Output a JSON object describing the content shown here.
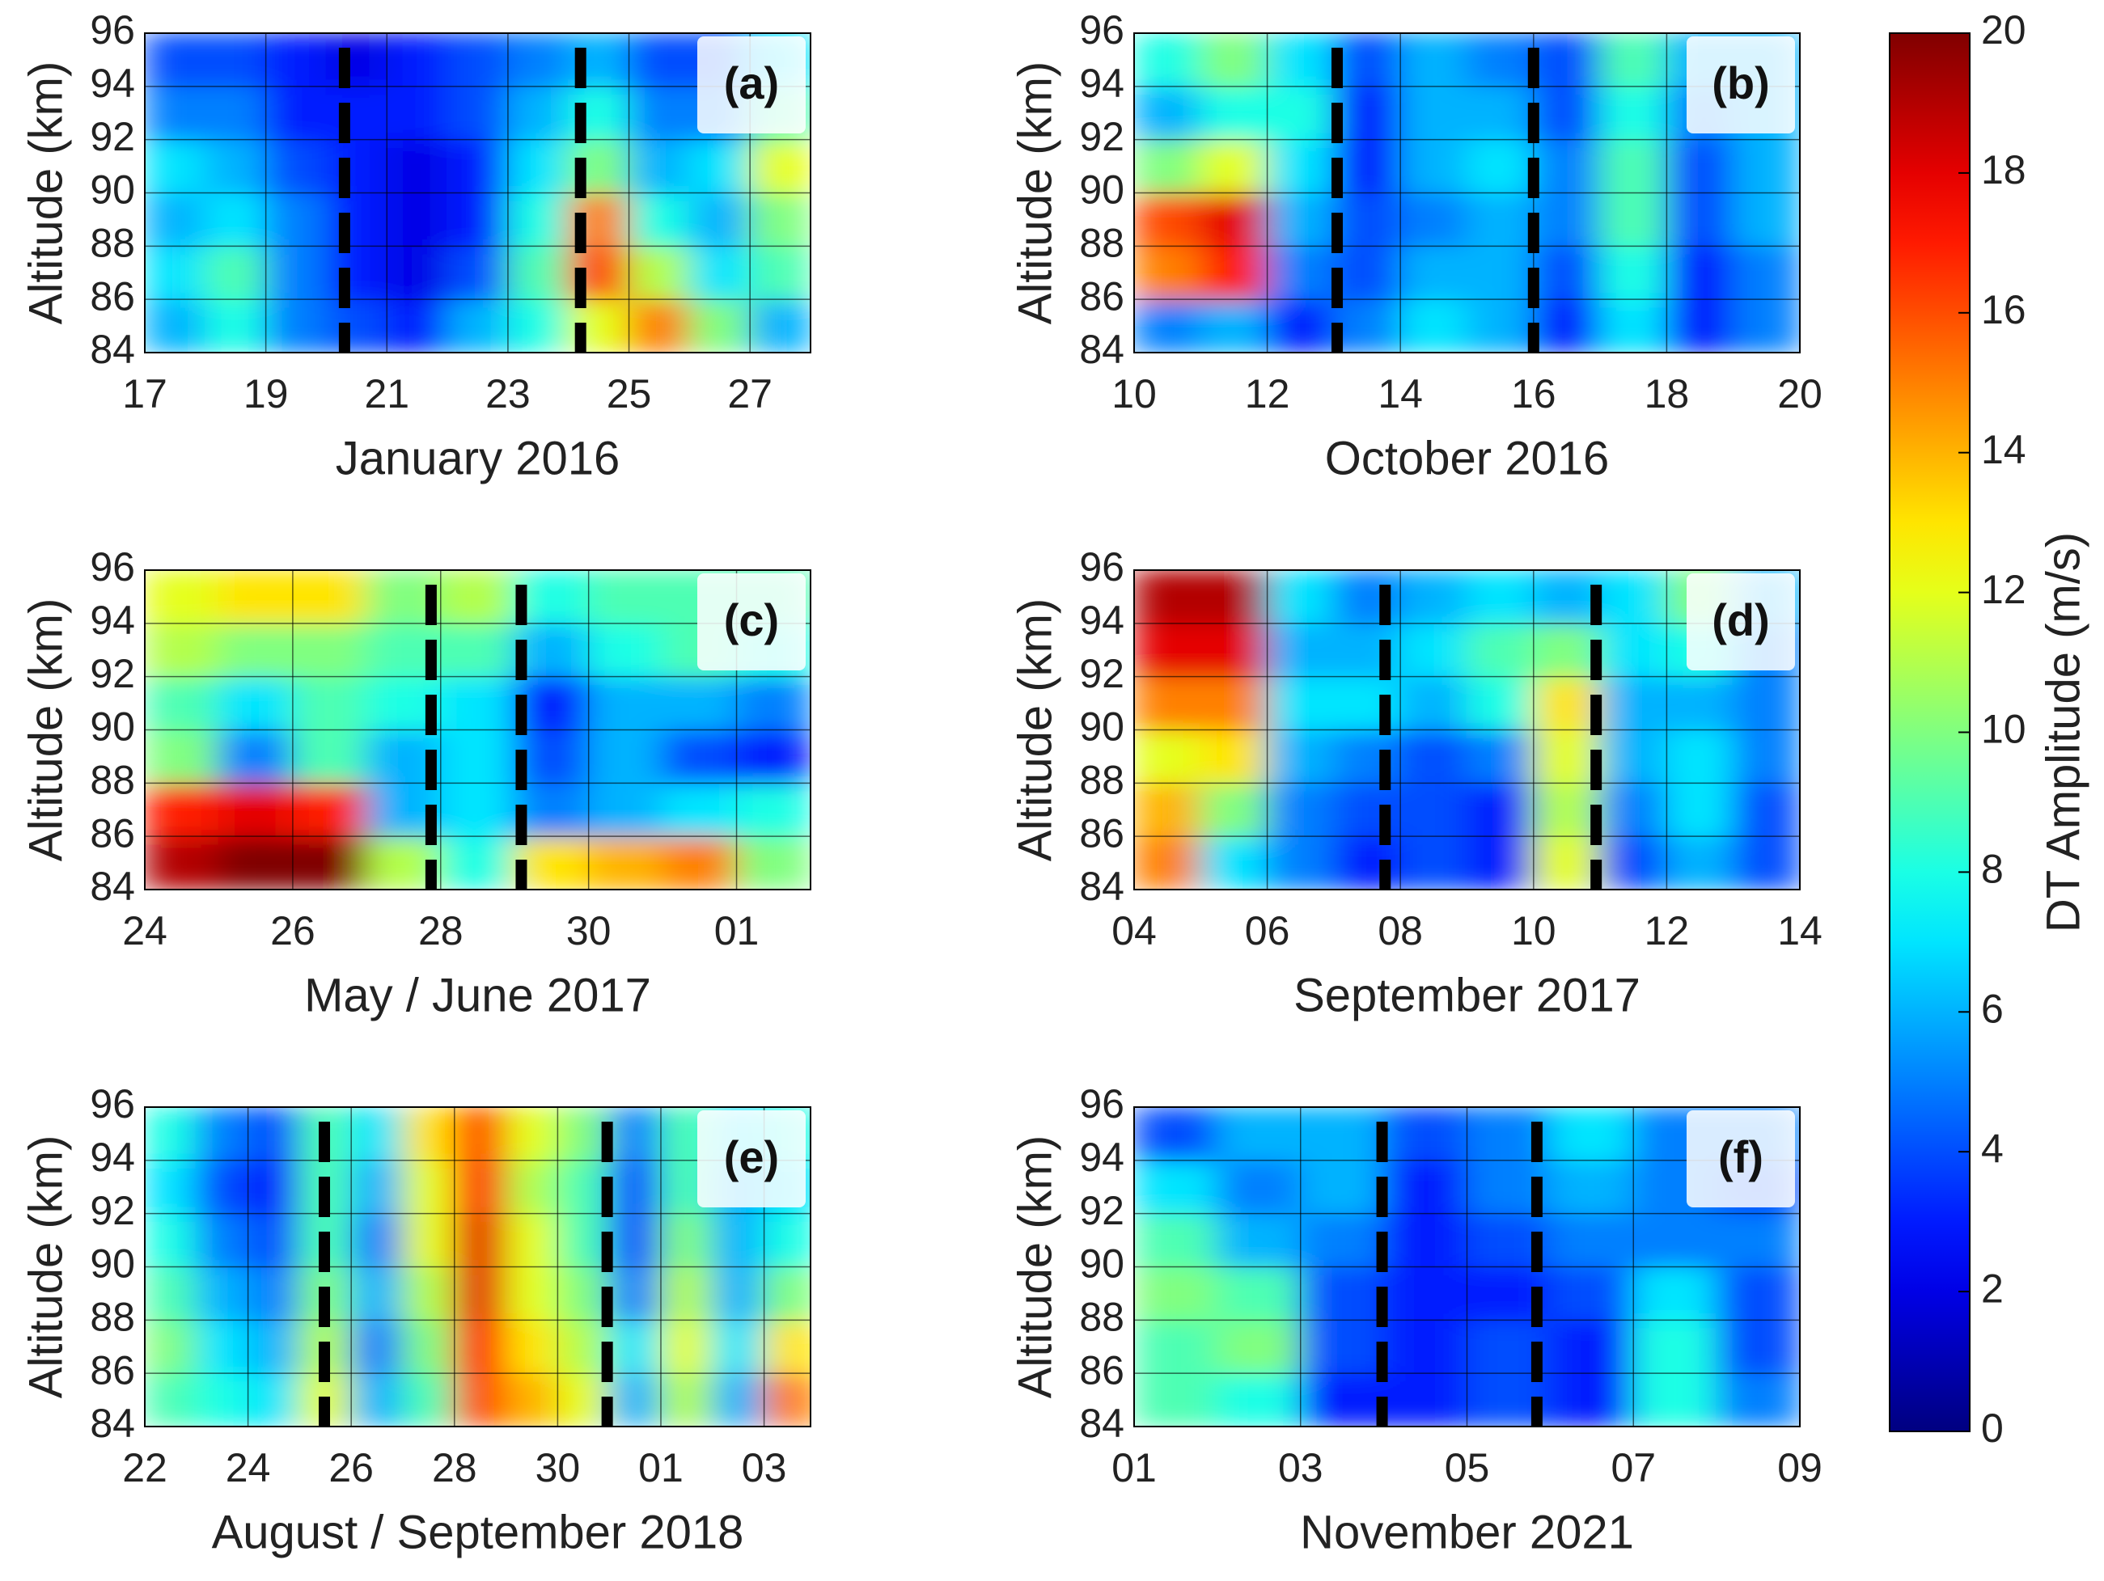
{
  "chart_data": [
    {
      "type": "heatmap",
      "label": "(a)",
      "xlabel": "January 2016",
      "ylabel": "Altitude (km)",
      "colormap": "jet",
      "zlim": [
        0,
        20
      ],
      "grid": true,
      "xlim": [
        17,
        28
      ],
      "xticks": [
        17,
        19,
        21,
        23,
        25,
        27
      ],
      "ylim": [
        84,
        96
      ],
      "yticks": [
        84,
        86,
        88,
        90,
        92,
        94,
        96
      ],
      "event_lines": [
        20.3,
        24.2
      ],
      "x": [
        17.5,
        18.5,
        19.5,
        20.5,
        21.5,
        22.5,
        23.5,
        24.5,
        25.5,
        26.5,
        27.5
      ],
      "y": [
        85,
        87,
        89,
        91,
        93,
        95
      ],
      "z": [
        [
          6,
          8,
          5,
          4,
          3,
          6,
          8,
          12,
          15,
          10,
          6
        ],
        [
          7,
          9,
          5,
          3,
          2,
          4,
          9,
          16,
          11,
          7,
          9
        ],
        [
          6,
          7,
          5,
          3,
          2,
          3,
          8,
          15,
          8,
          6,
          10
        ],
        [
          7,
          6,
          4,
          3,
          2,
          3,
          7,
          10,
          6,
          7,
          12
        ],
        [
          5,
          5,
          3,
          3,
          3,
          4,
          6,
          8,
          5,
          5,
          9
        ],
        [
          4,
          4,
          3,
          2,
          3,
          4,
          5,
          6,
          4,
          4,
          7
        ]
      ]
    },
    {
      "type": "heatmap",
      "label": "(b)",
      "xlabel": "October 2016",
      "ylabel": "Altitude (km)",
      "colormap": "jet",
      "zlim": [
        0,
        20
      ],
      "grid": true,
      "xlim": [
        10,
        20
      ],
      "xticks": [
        10,
        12,
        14,
        16,
        18,
        20
      ],
      "ylim": [
        84,
        96
      ],
      "yticks": [
        84,
        86,
        88,
        90,
        92,
        94,
        96
      ],
      "event_lines": [
        13.05,
        16
      ],
      "x": [
        10.5,
        11.5,
        12.5,
        13.5,
        14.5,
        15.5,
        16.5,
        17.5,
        18.5,
        19.5
      ],
      "y": [
        85,
        87,
        89,
        91,
        93,
        95
      ],
      "z": [
        [
          5,
          6,
          3,
          5,
          7,
          6,
          3,
          7,
          3,
          5
        ],
        [
          15,
          17,
          5,
          4,
          6,
          6,
          4,
          8,
          3,
          5
        ],
        [
          16,
          18,
          6,
          4,
          5,
          6,
          5,
          9,
          4,
          6
        ],
        [
          10,
          12,
          7,
          3,
          6,
          7,
          5,
          9,
          4,
          6
        ],
        [
          6,
          8,
          8,
          3,
          6,
          6,
          4,
          8,
          5,
          6
        ],
        [
          8,
          10,
          7,
          4,
          6,
          5,
          4,
          9,
          6,
          6
        ]
      ]
    },
    {
      "type": "heatmap",
      "label": "(c)",
      "xlabel": "May / June 2017",
      "ylabel": "Altitude (km)",
      "colormap": "jet",
      "zlim": [
        0,
        20
      ],
      "grid": true,
      "xlim": [
        0,
        9
      ],
      "xticks": [
        {
          "value": 0,
          "label": "24"
        },
        {
          "value": 2,
          "label": "26"
        },
        {
          "value": 4,
          "label": "28"
        },
        {
          "value": 6,
          "label": "30"
        },
        {
          "value": 8,
          "label": "01"
        }
      ],
      "ylim": [
        84,
        96
      ],
      "yticks": [
        84,
        86,
        88,
        90,
        92,
        94,
        96
      ],
      "event_lines": [
        3.87,
        5.09
      ],
      "x": [
        0.5,
        1.5,
        2.5,
        3.5,
        4.5,
        5.5,
        6.5,
        7.5,
        8.5
      ],
      "y": [
        85,
        87,
        89,
        91,
        93,
        95
      ],
      "z": [
        [
          19,
          20,
          20,
          11,
          8,
          13,
          14,
          15,
          10
        ],
        [
          17,
          18,
          17,
          6,
          7,
          5,
          6,
          7,
          8
        ],
        [
          10,
          5,
          9,
          6,
          7,
          4,
          6,
          4,
          3
        ],
        [
          9,
          7,
          9,
          8,
          7,
          3,
          6,
          6,
          5
        ],
        [
          11,
          10,
          10,
          9,
          9,
          6,
          8,
          9,
          8
        ],
        [
          12,
          13,
          13,
          10,
          11,
          8,
          9,
          9,
          9
        ]
      ]
    },
    {
      "type": "heatmap",
      "label": "(d)",
      "xlabel": "September 2017",
      "ylabel": "Altitude (km)",
      "colormap": "jet",
      "zlim": [
        0,
        20
      ],
      "grid": true,
      "xlim": [
        4,
        14
      ],
      "xticks": [
        {
          "value": 4,
          "label": "04"
        },
        {
          "value": 6,
          "label": "06"
        },
        {
          "value": 8,
          "label": "08"
        },
        10,
        12,
        14
      ],
      "ylim": [
        84,
        96
      ],
      "yticks": [
        84,
        86,
        88,
        90,
        92,
        94,
        96
      ],
      "event_lines": [
        7.77,
        10.94
      ],
      "x": [
        4.5,
        5.5,
        6.5,
        7.5,
        8.5,
        9.5,
        10.5,
        11.5,
        12.5,
        13.5
      ],
      "y": [
        85,
        87,
        89,
        91,
        93,
        95
      ],
      "z": [
        [
          15,
          7,
          5,
          3,
          4,
          3,
          12,
          4,
          6,
          4
        ],
        [
          14,
          10,
          5,
          4,
          4,
          3,
          11,
          5,
          7,
          4
        ],
        [
          12,
          13,
          6,
          5,
          4,
          5,
          12,
          6,
          7,
          5
        ],
        [
          15,
          15,
          7,
          7,
          6,
          8,
          13,
          6,
          6,
          5
        ],
        [
          18,
          18,
          6,
          6,
          7,
          9,
          10,
          7,
          8,
          5
        ],
        [
          19,
          19,
          7,
          5,
          6,
          7,
          6,
          7,
          10,
          6
        ]
      ]
    },
    {
      "type": "heatmap",
      "label": "(e)",
      "xlabel": "August / September 2018",
      "ylabel": "Altitude (km)",
      "colormap": "jet",
      "zlim": [
        0,
        20
      ],
      "grid": true,
      "xlim": [
        0,
        12.9
      ],
      "xticks": [
        {
          "value": 0,
          "label": "22"
        },
        {
          "value": 2,
          "label": "24"
        },
        {
          "value": 4,
          "label": "26"
        },
        {
          "value": 6,
          "label": "28"
        },
        {
          "value": 8,
          "label": "30"
        },
        {
          "value": 10,
          "label": "01"
        },
        {
          "value": 12,
          "label": "03"
        }
      ],
      "ylim": [
        84,
        96
      ],
      "yticks": [
        84,
        86,
        88,
        90,
        92,
        94,
        96
      ],
      "event_lines": [
        3.48,
        8.96
      ],
      "x": [
        0.5,
        1.5,
        2.5,
        3.5,
        4.5,
        5.5,
        6.5,
        7.5,
        8.5,
        9.5,
        10.5,
        11.5,
        12.5
      ],
      "y": [
        85,
        87,
        89,
        91,
        93,
        95
      ],
      "z": [
        [
          9,
          8,
          7,
          12,
          6,
          9,
          16,
          14,
          12,
          6,
          11,
          6,
          15
        ],
        [
          10,
          7,
          6,
          11,
          5,
          10,
          17,
          13,
          11,
          7,
          12,
          7,
          13
        ],
        [
          9,
          6,
          5,
          10,
          6,
          11,
          18,
          12,
          10,
          5,
          11,
          6,
          10
        ],
        [
          8,
          5,
          4,
          9,
          5,
          12,
          18,
          12,
          9,
          4,
          10,
          6,
          8
        ],
        [
          7,
          4,
          3,
          9,
          6,
          12,
          17,
          11,
          9,
          4,
          9,
          6,
          7
        ],
        [
          8,
          5,
          4,
          9,
          7,
          13,
          16,
          12,
          10,
          5,
          9,
          7,
          8
        ]
      ]
    },
    {
      "type": "heatmap",
      "label": "(f)",
      "xlabel": "November 2021",
      "ylabel": "Altitude (km)",
      "colormap": "jet",
      "zlim": [
        0,
        20
      ],
      "grid": true,
      "xlim": [
        1,
        9
      ],
      "xticks": [
        {
          "value": 1,
          "label": "01"
        },
        {
          "value": 3,
          "label": "03"
        },
        {
          "value": 5,
          "label": "05"
        },
        {
          "value": 7,
          "label": "07"
        },
        {
          "value": 9,
          "label": "09"
        }
      ],
      "ylim": [
        84,
        96
      ],
      "yticks": [
        84,
        86,
        88,
        90,
        92,
        94,
        96
      ],
      "event_lines": [
        3.98,
        5.84
      ],
      "x": [
        1.5,
        2.5,
        3.5,
        4.5,
        5.5,
        6.5,
        7.5,
        8.5
      ],
      "y": [
        85,
        87,
        89,
        91,
        93,
        95
      ],
      "z": [
        [
          9,
          8,
          3,
          3,
          4,
          3,
          8,
          5
        ],
        [
          9,
          10,
          4,
          3,
          4,
          3,
          8,
          4
        ],
        [
          10,
          9,
          4,
          3,
          3,
          4,
          7,
          4
        ],
        [
          9,
          6,
          5,
          3,
          4,
          5,
          5,
          5
        ],
        [
          7,
          5,
          6,
          3,
          5,
          6,
          5,
          4
        ],
        [
          4,
          6,
          6,
          4,
          5,
          7,
          5,
          5
        ]
      ]
    },
    {
      "type": "colorbar",
      "label": "DT Amplitude (m/s)",
      "colormap": "jet",
      "zlim": [
        0,
        20
      ],
      "zticks": [
        0,
        2,
        4,
        6,
        8,
        10,
        12,
        14,
        16,
        18,
        20
      ]
    }
  ]
}
